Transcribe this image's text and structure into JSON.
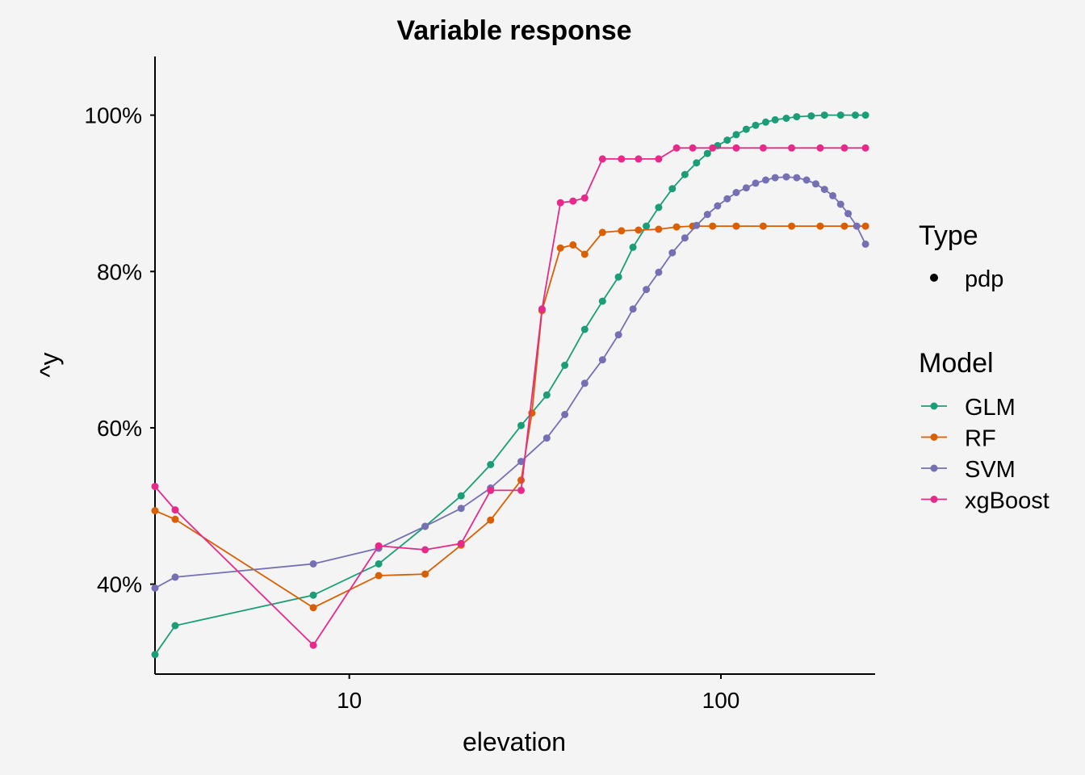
{
  "chart_data": {
    "type": "line",
    "title": "Variable response",
    "xlabel": "elevation",
    "ylabel": "^y",
    "x_scale": "log10",
    "xlim": [
      3,
      260
    ],
    "ylim": [
      0.285,
      1.075
    ],
    "x_ticks": [
      {
        "value": 10,
        "label": "10"
      },
      {
        "value": 100,
        "label": "100"
      }
    ],
    "y_ticks": [
      {
        "value": 0.4,
        "label": "40%"
      },
      {
        "value": 0.6,
        "label": "60%"
      },
      {
        "value": 0.8,
        "label": "80%"
      },
      {
        "value": 1.0,
        "label": "100%"
      }
    ],
    "grid": false,
    "legend_position": "right",
    "legend": {
      "type_title": "Type",
      "type_items": [
        "pdp"
      ],
      "model_title": "Model"
    },
    "series": [
      {
        "name": "GLM",
        "color": "#1b9e77",
        "points": [
          [
            3,
            0.31
          ],
          [
            3.4,
            0.347
          ],
          [
            8,
            0.386
          ],
          [
            12,
            0.426
          ],
          [
            16,
            0.474
          ],
          [
            20,
            0.513
          ],
          [
            24,
            0.553
          ],
          [
            29,
            0.603
          ],
          [
            34,
            0.642
          ],
          [
            38,
            0.68
          ],
          [
            43,
            0.726
          ],
          [
            48,
            0.762
          ],
          [
            53,
            0.793
          ],
          [
            58,
            0.831
          ],
          [
            63,
            0.858
          ],
          [
            68,
            0.882
          ],
          [
            74,
            0.906
          ],
          [
            80,
            0.924
          ],
          [
            86,
            0.939
          ],
          [
            92,
            0.951
          ],
          [
            98,
            0.961
          ],
          [
            104,
            0.968
          ],
          [
            110,
            0.975
          ],
          [
            117,
            0.982
          ],
          [
            124,
            0.987
          ],
          [
            132,
            0.991
          ],
          [
            140,
            0.994
          ],
          [
            150,
            0.996
          ],
          [
            160,
            0.998
          ],
          [
            175,
            0.999
          ],
          [
            190,
            1.0
          ],
          [
            210,
            1.0
          ],
          [
            230,
            1.0
          ],
          [
            245,
            1.0
          ]
        ]
      },
      {
        "name": "RF",
        "color": "#d95f02",
        "points": [
          [
            3,
            0.494
          ],
          [
            3.4,
            0.483
          ],
          [
            8,
            0.37
          ],
          [
            12,
            0.411
          ],
          [
            16,
            0.413
          ],
          [
            20,
            0.45
          ],
          [
            24,
            0.482
          ],
          [
            29,
            0.533
          ],
          [
            31,
            0.619
          ],
          [
            33,
            0.75
          ],
          [
            37,
            0.83
          ],
          [
            40,
            0.834
          ],
          [
            43,
            0.822
          ],
          [
            48,
            0.85
          ],
          [
            54,
            0.852
          ],
          [
            60,
            0.853
          ],
          [
            68,
            0.854
          ],
          [
            76,
            0.857
          ],
          [
            84,
            0.858
          ],
          [
            95,
            0.858
          ],
          [
            110,
            0.858
          ],
          [
            130,
            0.858
          ],
          [
            155,
            0.858
          ],
          [
            185,
            0.858
          ],
          [
            215,
            0.858
          ],
          [
            245,
            0.858
          ]
        ]
      },
      {
        "name": "SVM",
        "color": "#7570b3",
        "points": [
          [
            3,
            0.395
          ],
          [
            3.4,
            0.409
          ],
          [
            8,
            0.426
          ],
          [
            12,
            0.446
          ],
          [
            16,
            0.474
          ],
          [
            20,
            0.497
          ],
          [
            24,
            0.523
          ],
          [
            29,
            0.557
          ],
          [
            34,
            0.587
          ],
          [
            38,
            0.617
          ],
          [
            43,
            0.657
          ],
          [
            48,
            0.687
          ],
          [
            53,
            0.719
          ],
          [
            58,
            0.752
          ],
          [
            63,
            0.777
          ],
          [
            68,
            0.799
          ],
          [
            74,
            0.824
          ],
          [
            80,
            0.843
          ],
          [
            86,
            0.859
          ],
          [
            92,
            0.873
          ],
          [
            98,
            0.884
          ],
          [
            104,
            0.893
          ],
          [
            110,
            0.901
          ],
          [
            117,
            0.907
          ],
          [
            124,
            0.913
          ],
          [
            132,
            0.917
          ],
          [
            140,
            0.92
          ],
          [
            150,
            0.921
          ],
          [
            160,
            0.92
          ],
          [
            170,
            0.917
          ],
          [
            180,
            0.912
          ],
          [
            190,
            0.905
          ],
          [
            200,
            0.897
          ],
          [
            210,
            0.886
          ],
          [
            220,
            0.874
          ],
          [
            232,
            0.858
          ],
          [
            245,
            0.835
          ]
        ]
      },
      {
        "name": "xgBoost",
        "color": "#e7298a",
        "points": [
          [
            3,
            0.525
          ],
          [
            3.4,
            0.495
          ],
          [
            8,
            0.322
          ],
          [
            12,
            0.449
          ],
          [
            16,
            0.444
          ],
          [
            20,
            0.452
          ],
          [
            24,
            0.52
          ],
          [
            29,
            0.52
          ],
          [
            33,
            0.752
          ],
          [
            37,
            0.888
          ],
          [
            40,
            0.89
          ],
          [
            43,
            0.894
          ],
          [
            48,
            0.944
          ],
          [
            54,
            0.944
          ],
          [
            60,
            0.944
          ],
          [
            68,
            0.944
          ],
          [
            76,
            0.958
          ],
          [
            84,
            0.958
          ],
          [
            95,
            0.958
          ],
          [
            110,
            0.958
          ],
          [
            130,
            0.958
          ],
          [
            155,
            0.958
          ],
          [
            185,
            0.958
          ],
          [
            215,
            0.958
          ],
          [
            245,
            0.958
          ]
        ]
      }
    ]
  }
}
